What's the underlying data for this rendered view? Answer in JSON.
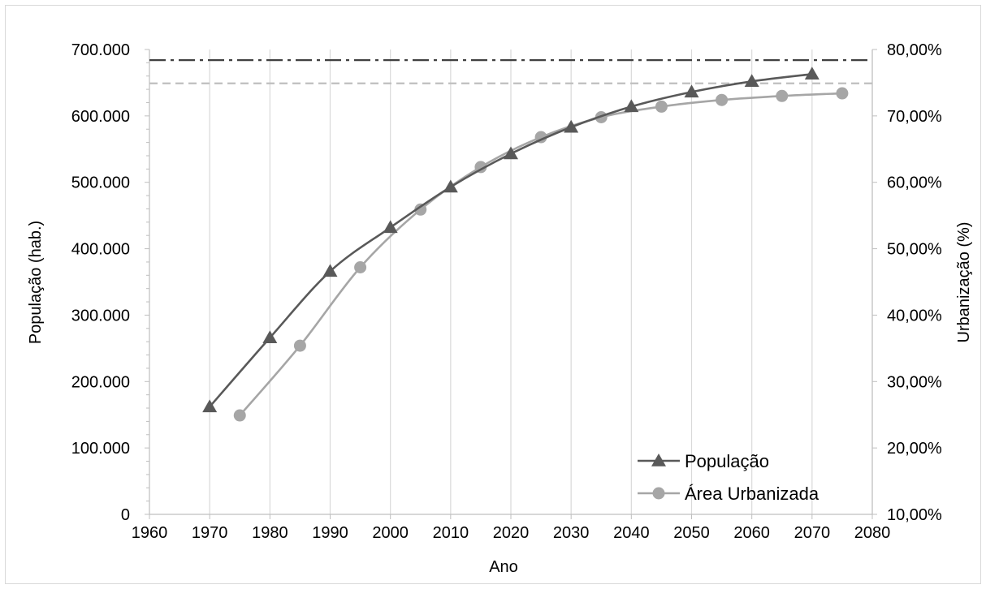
{
  "chart_data": {
    "type": "line",
    "xlabel": "Ano",
    "ylabel": "População (hab.)",
    "y2label": "Urbanização (%)",
    "xlim": [
      1960,
      2080
    ],
    "ylim": [
      0,
      700000
    ],
    "y2lim": [
      0.1,
      0.8
    ],
    "x_ticks": [
      "1960",
      "1970",
      "1980",
      "1990",
      "2000",
      "2010",
      "2020",
      "2030",
      "2040",
      "2050",
      "2060",
      "2070",
      "2080"
    ],
    "y_ticks": [
      "0",
      "100.000",
      "200.000",
      "300.000",
      "400.000",
      "500.000",
      "600.000",
      "700.000"
    ],
    "y2_ticks": [
      "10,00%",
      "20,00%",
      "30,00%",
      "40,00%",
      "50,00%",
      "60,00%",
      "70,00%",
      "80,00%"
    ],
    "grid": "vertical",
    "legend_position": "bottom-right",
    "series": [
      {
        "name": "População",
        "axis": "left",
        "marker": "triangle",
        "color": "#595959",
        "x": [
          1970,
          1980,
          1990,
          2000,
          2010,
          2020,
          2030,
          2040,
          2050,
          2060,
          2070
        ],
        "y": [
          162000,
          266000,
          366000,
          432000,
          493000,
          543000,
          583000,
          614000,
          636000,
          652000,
          663000
        ]
      },
      {
        "name": "Área Urbanizada",
        "axis": "right",
        "marker": "circle",
        "color": "#a6a6a6",
        "x": [
          1975,
          1985,
          1995,
          2005,
          2015,
          2025,
          2035,
          2045,
          2055,
          2065,
          2075
        ],
        "y": [
          0.249,
          0.354,
          0.472,
          0.559,
          0.623,
          0.668,
          0.698,
          0.714,
          0.724,
          0.73,
          0.734
        ]
      }
    ],
    "reference_lines": [
      {
        "axis": "left",
        "value": 684000,
        "style": "dash-dot",
        "color": "#404040"
      },
      {
        "axis": "right",
        "value": 0.749,
        "style": "dashed",
        "color": "#bfbfbf"
      }
    ]
  }
}
